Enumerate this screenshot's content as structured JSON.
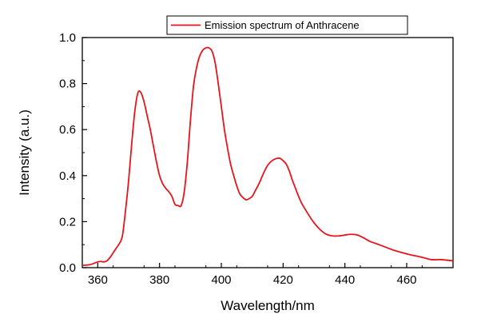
{
  "chart_data": {
    "type": "line",
    "xlabel": "Wavelength/nm",
    "ylabel": "Intensity (a.u.)",
    "xlim": [
      355,
      475
    ],
    "ylim": [
      0.0,
      1.0
    ],
    "x_ticks": [
      360,
      380,
      400,
      420,
      440,
      460
    ],
    "x_tick_labels": [
      "360",
      "380",
      "400",
      "420",
      "440",
      "460"
    ],
    "y_ticks": [
      0.0,
      0.2,
      0.4,
      0.6,
      0.8,
      1.0
    ],
    "y_tick_labels": [
      "0.0",
      "0.2",
      "0.4",
      "0.6",
      "0.8",
      "1.0"
    ],
    "grid": false,
    "legend_position": "top",
    "series": [
      {
        "name": "Emission spectrum of Anthracene",
        "color": "#e8141b",
        "x": [
          355,
          357,
          358,
          360,
          361,
          362,
          363,
          364,
          365,
          366,
          367,
          368,
          369,
          370,
          371,
          372,
          373,
          374,
          375,
          376,
          377,
          378,
          379,
          380,
          381,
          382,
          383,
          384,
          385,
          386,
          387,
          388,
          389,
          390,
          391,
          392,
          393,
          394,
          395,
          396,
          397,
          398,
          399,
          400,
          401,
          402,
          403,
          404,
          405,
          406,
          407,
          408,
          409,
          410,
          411,
          412,
          413,
          414,
          415,
          416,
          417,
          418,
          419,
          420,
          421,
          422,
          423,
          424,
          425,
          426,
          428,
          430,
          432,
          434,
          436,
          438,
          440,
          442,
          444,
          446,
          448,
          450,
          453,
          456,
          460,
          465,
          468,
          471,
          475
        ],
        "y": [
          0.01,
          0.012,
          0.015,
          0.025,
          0.027,
          0.025,
          0.03,
          0.045,
          0.065,
          0.085,
          0.105,
          0.14,
          0.25,
          0.38,
          0.54,
          0.68,
          0.76,
          0.76,
          0.72,
          0.66,
          0.6,
          0.53,
          0.46,
          0.4,
          0.365,
          0.345,
          0.33,
          0.31,
          0.275,
          0.27,
          0.27,
          0.33,
          0.46,
          0.64,
          0.79,
          0.87,
          0.92,
          0.945,
          0.955,
          0.955,
          0.94,
          0.89,
          0.8,
          0.7,
          0.6,
          0.52,
          0.45,
          0.4,
          0.355,
          0.32,
          0.305,
          0.295,
          0.3,
          0.31,
          0.335,
          0.36,
          0.39,
          0.42,
          0.445,
          0.46,
          0.47,
          0.475,
          0.475,
          0.465,
          0.45,
          0.42,
          0.38,
          0.345,
          0.31,
          0.28,
          0.235,
          0.195,
          0.165,
          0.145,
          0.138,
          0.138,
          0.142,
          0.145,
          0.142,
          0.13,
          0.115,
          0.105,
          0.09,
          0.075,
          0.06,
          0.045,
          0.035,
          0.035,
          0.03
        ]
      }
    ]
  }
}
